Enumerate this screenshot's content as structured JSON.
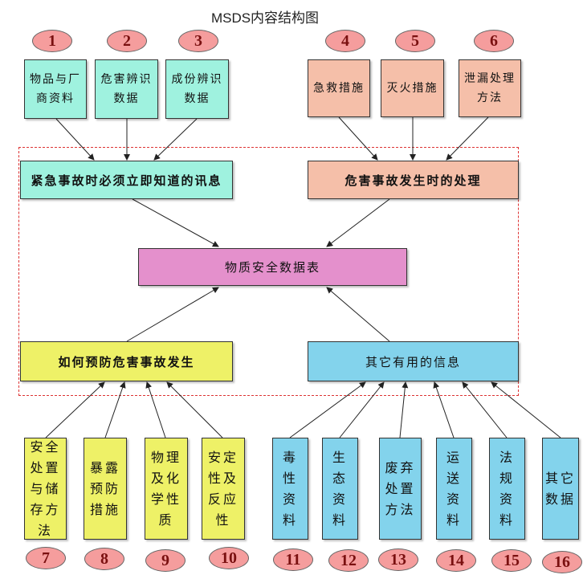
{
  "title": "MSDS内容结构图",
  "center": "物质安全数据表",
  "groups": {
    "emergency": "紧急事故时必须立即知道的讯息",
    "handling": "危害事故发生时的处理",
    "prevention": "如何预防危害事故发生",
    "other": "其它有用的信息"
  },
  "items": [
    {
      "num": "1",
      "label": "物品与厂商资料"
    },
    {
      "num": "2",
      "label": "危害辨识数据"
    },
    {
      "num": "3",
      "label": "成份辨识数据"
    },
    {
      "num": "4",
      "label": "急救措施"
    },
    {
      "num": "5",
      "label": "灭火措施"
    },
    {
      "num": "6",
      "label": "泄漏处理方法"
    },
    {
      "num": "7",
      "label": "安全处置与储存方法"
    },
    {
      "num": "8",
      "label": "暴露预防措施"
    },
    {
      "num": "9",
      "label": "物理及化学性质"
    },
    {
      "num": "10",
      "label": "安定性及反应性"
    },
    {
      "num": "11",
      "label": "毒性资料"
    },
    {
      "num": "12",
      "label": "生态资料"
    },
    {
      "num": "13",
      "label": "废弃处置方法"
    },
    {
      "num": "14",
      "label": "运送资料"
    },
    {
      "num": "15",
      "label": "法规资料"
    },
    {
      "num": "16",
      "label": "其它数据"
    }
  ],
  "colors": {
    "teal": "#9ff2df",
    "salmon": "#f5bfa9",
    "pink": "#e490cc",
    "yellow": "#eef167",
    "blue": "#83d3ec",
    "badge": "#f59d9d",
    "dashed_border": "#dd3333"
  }
}
